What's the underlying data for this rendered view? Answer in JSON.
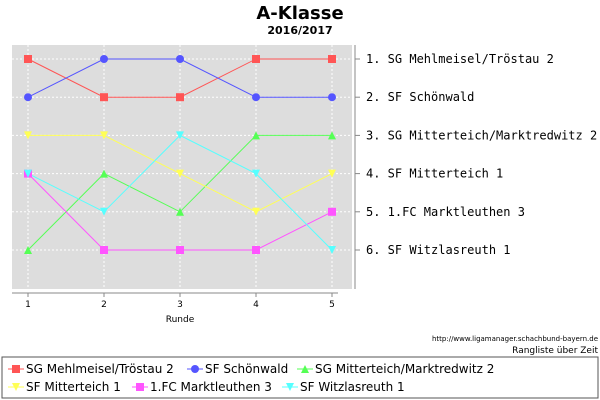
{
  "chart_data": {
    "type": "line",
    "title": "A-Klasse",
    "subtitle": "2016/2017",
    "xlabel": "Runde",
    "x": [
      1,
      2,
      3,
      4,
      5
    ],
    "ylim": [
      6,
      1
    ],
    "grid": true,
    "rank_labels": [
      "1. SG Mehlmeisel/Tröstau 2",
      "2. SF Schönwald",
      "3. SG Mitterteich/Marktredwitz 2",
      "4. SF Mitterteich 1",
      "5. 1.FC Marktleuthen 3",
      "6. SF Witzlasreuth 1"
    ],
    "series": [
      {
        "name": "SG Mehlmeisel/Tröstau 2",
        "values": [
          1,
          2,
          2,
          1,
          1
        ],
        "color": "#ff5555",
        "marker": "square"
      },
      {
        "name": "SF Schönwald",
        "values": [
          2,
          1,
          1,
          2,
          2
        ],
        "color": "#5555ff",
        "marker": "circle"
      },
      {
        "name": "SG Mitterteich/Marktredwitz 2",
        "values": [
          6,
          4,
          5,
          3,
          3
        ],
        "color": "#55ff55",
        "marker": "triangle-up"
      },
      {
        "name": "SF Mitterteich 1",
        "values": [
          3,
          3,
          4,
          5,
          4
        ],
        "color": "#ffff55",
        "marker": "triangle-down"
      },
      {
        "name": "1.FC Marktleuthen 3",
        "values": [
          4,
          6,
          6,
          6,
          5
        ],
        "color": "#ff55ff",
        "marker": "square"
      },
      {
        "name": "SF Witzlasreuth 1",
        "values": [
          4,
          5,
          3,
          4,
          6
        ],
        "color": "#55ffff",
        "marker": "triangle-down"
      }
    ],
    "source": "http://www.ligamanager.schachbund-bayern.de",
    "note": "Rangliste über Zeit",
    "legend_placement": "bottom"
  }
}
